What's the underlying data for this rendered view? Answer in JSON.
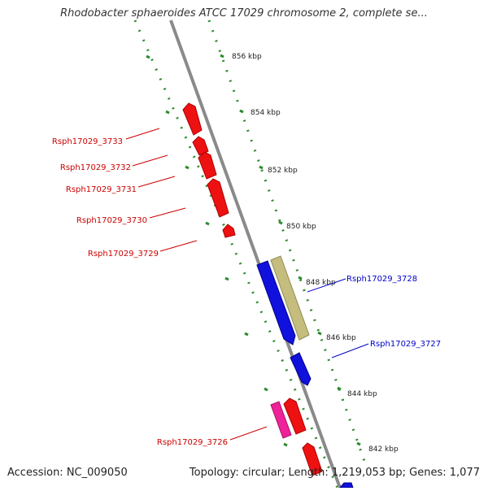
{
  "title": "Rhodobacter sphaeroides ATCC 17029 chromosome 2, complete se...",
  "footer": {
    "accession": "Accession: NC_009050",
    "summary": "Topology: circular; Length: 1,219,053 bp; Genes: 1,077"
  },
  "ticks": [
    "856 kbp",
    "854 kbp",
    "852 kbp",
    "850 kbp",
    "848 kbp",
    "846 kbp",
    "844 kbp",
    "842 kbp"
  ],
  "genes_left": [
    "Rsph17029_3733",
    "Rsph17029_3732",
    "Rsph17029_3731",
    "Rsph17029_3730",
    "Rsph17029_3729",
    "Rsph17029_3726"
  ],
  "genes_right": [
    "Rsph17029_3728",
    "Rsph17029_3727"
  ],
  "colors": {
    "backbone": "#8a8a8a",
    "ruler": "#2e8b2e",
    "reverse_strand_gene": "#ee1111",
    "forward_strand_gene": "#1111dd",
    "pseudo_gene": "#c4bd7d",
    "rna_gene": "#ee2299",
    "left_label": "#cc0000",
    "right_label": "#0000cc"
  }
}
